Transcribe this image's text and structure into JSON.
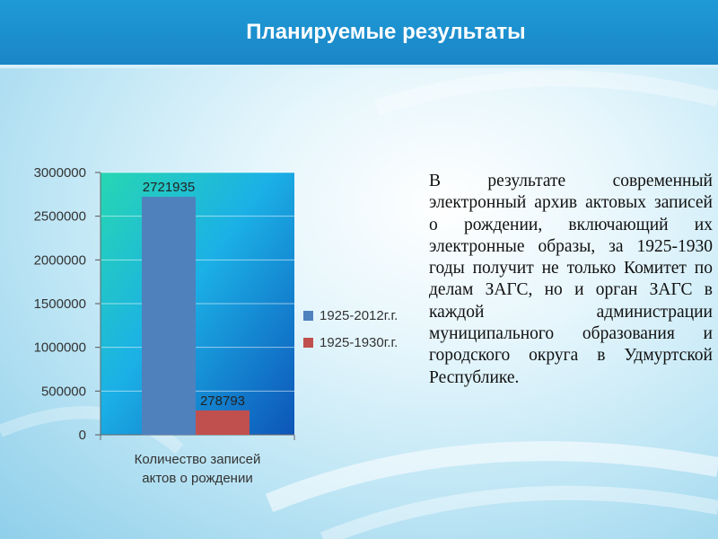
{
  "slide": {
    "title": "Планируемые результаты",
    "body_text": "В результате современный электронный архив актовых записей о рождении, включающий их электронные образы, за 1925-1930 годы получит не только Комитет по делам ЗАГС, но и орган ЗАГС в каждой администрации муниципального образования и городского округа в Удмуртской Республике."
  },
  "colors": {
    "title_bar": "#1d92d0",
    "series_1": "#4f81bd",
    "series_2": "#c0504d"
  },
  "chart_data": {
    "type": "bar",
    "categories": [
      "Количество записей актов о рождении"
    ],
    "category_lines": [
      "Количество записей",
      "актов о рождении"
    ],
    "series": [
      {
        "name": "1925-2012г.г.",
        "values": [
          2721935
        ],
        "color": "#4f81bd"
      },
      {
        "name": "1925-1930г.г.",
        "values": [
          278793
        ],
        "color": "#c0504d"
      }
    ],
    "data_labels": [
      "2721935",
      "278793"
    ],
    "y_ticks": [
      "0",
      "500000",
      "1000000",
      "1500000",
      "2000000",
      "2500000",
      "3000000"
    ],
    "ylim": [
      0,
      3000000
    ],
    "grid": true,
    "legend_position": "right",
    "title": "",
    "xlabel": "",
    "ylabel": ""
  }
}
